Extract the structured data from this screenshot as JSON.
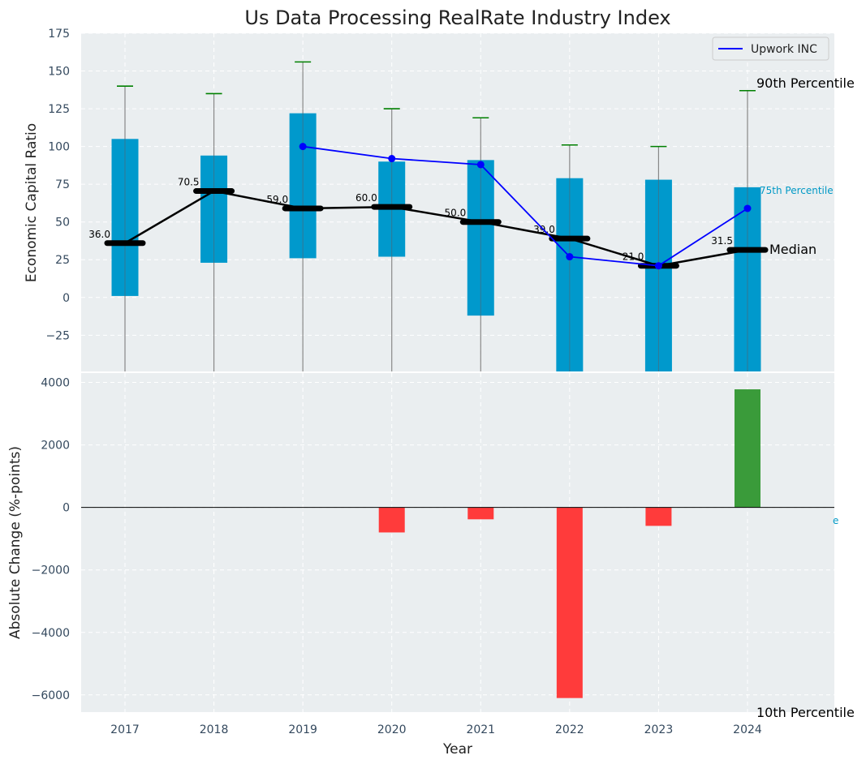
{
  "chart_data": [
    {
      "type": "box",
      "title": "Us Data Processing RealRate Industry Index",
      "ylabel": "Economic Capital Ratio",
      "ylim": [
        -49,
        175
      ],
      "yticks": [
        -25,
        0,
        25,
        50,
        75,
        100,
        125,
        150,
        175
      ],
      "yticklabels": [
        "−25",
        "0",
        "25",
        "50",
        "75",
        "100",
        "125",
        "150",
        "175"
      ],
      "categories": [
        "2017",
        "2018",
        "2019",
        "2020",
        "2021",
        "2022",
        "2023",
        "2024"
      ],
      "grid": true,
      "legend_position": "top-right",
      "boxes": [
        {
          "year": "2017",
          "p10": -49,
          "p25": 1,
          "median": 36.0,
          "p75": 105,
          "p90": 140
        },
        {
          "year": "2018",
          "p10": -49,
          "p25": 23,
          "median": 70.5,
          "p75": 94,
          "p90": 135
        },
        {
          "year": "2019",
          "p10": -49,
          "p25": 26,
          "median": 59.0,
          "p75": 122,
          "p90": 156
        },
        {
          "year": "2020",
          "p10": -49,
          "p25": 27,
          "median": 60.0,
          "p75": 90,
          "p90": 125
        },
        {
          "year": "2021",
          "p10": -49,
          "p25": -12,
          "median": 50.0,
          "p75": 91,
          "p90": 119
        },
        {
          "year": "2022",
          "p10": -49,
          "p25": -49,
          "median": 39.0,
          "p75": 79,
          "p90": 101
        },
        {
          "year": "2023",
          "p10": -49,
          "p25": -49,
          "median": 21.0,
          "p75": 78,
          "p90": 100
        },
        {
          "year": "2024",
          "p10": -49,
          "p25": -49,
          "median": 31.5,
          "p75": 73,
          "p90": 137
        }
      ],
      "median_labels": [
        "36.0",
        "70.5",
        "59.0",
        "60.0",
        "50.0",
        "39.0",
        "21.0",
        "31.5"
      ],
      "series": [
        {
          "name": "Upwork INC",
          "color": "#0000ff",
          "points": [
            [
              2019,
              100
            ],
            [
              2020,
              92
            ],
            [
              2021,
              88
            ],
            [
              2022,
              27
            ],
            [
              2023,
              21
            ],
            [
              2024,
              59
            ]
          ]
        }
      ],
      "annotations": {
        "p90": "90th Percentile",
        "p75": "75th Percentile",
        "median": "Median"
      }
    },
    {
      "type": "bar",
      "ylabel": "Absolute Change (%-points)",
      "xlabel": "Year",
      "ylim": [
        -6550,
        4300
      ],
      "yticks": [
        -6000,
        -4000,
        -2000,
        0,
        2000,
        4000
      ],
      "yticklabels": [
        "−6000",
        "−4000",
        "−2000",
        "0",
        "2000",
        "4000"
      ],
      "categories": [
        "2017",
        "2018",
        "2019",
        "2020",
        "2021",
        "2022",
        "2023",
        "2024"
      ],
      "values": [
        null,
        null,
        null,
        -800,
        -380,
        -6100,
        -590,
        3780
      ],
      "grid": true,
      "annotations": {
        "p10": "10th Percentile",
        "p25_partial": "e"
      }
    }
  ],
  "colors": {
    "box": "#0099cc",
    "median": "#000000",
    "whisker_cap": "#008000",
    "whisker": "#888888",
    "series": "#0000ff",
    "positive": "#3a9b3a",
    "negative": "#ff3b3b",
    "background": "#eaeef0",
    "grid": "#ffffff"
  }
}
